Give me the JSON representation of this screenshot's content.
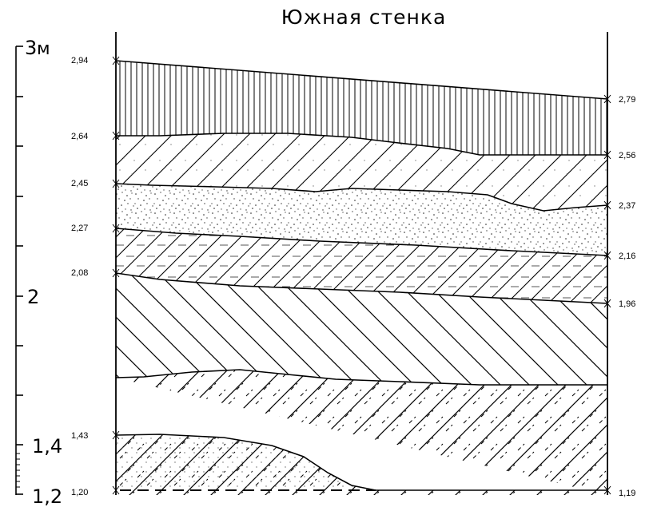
{
  "title": "Южная стенка",
  "scale": {
    "top_label": "3",
    "unit": "м",
    "labels": [
      "2",
      "1,4",
      "1,2"
    ]
  },
  "marks_left": [
    "2,94",
    "2,64",
    "2,45",
    "2,27",
    "2,08",
    "1,43",
    "1,20"
  ],
  "marks_right": [
    "2,79",
    "2,56",
    "2,37",
    "2,16",
    "1,96",
    "1,19"
  ],
  "layers": [
    {
      "name": "vertical-hatch-layer",
      "pattern": "vertical-lines"
    },
    {
      "name": "diagonal-dotted-layer",
      "pattern": "diagonal-forward-with-dots"
    },
    {
      "name": "stipple-layer",
      "pattern": "dense-dots"
    },
    {
      "name": "diagonal-dashed-layer",
      "pattern": "diagonal-forward-with-horizontal-dashes"
    },
    {
      "name": "back-diagonal-layer",
      "pattern": "diagonal-backward"
    },
    {
      "name": "diagonal-slanted-dash-layer",
      "pattern": "diagonal-forward-with-slanted-dashes"
    },
    {
      "name": "sparse-dots-layer",
      "pattern": "sparse-dots"
    }
  ],
  "colors": {
    "ink": "#000000",
    "paper": "#ffffff"
  }
}
